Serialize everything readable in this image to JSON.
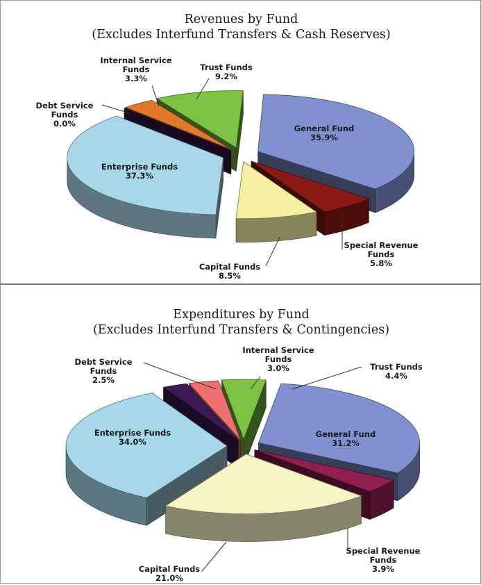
{
  "chart_data": [
    {
      "type": "pie",
      "title": "Revenues by Fund",
      "subtitle": "(Excludes Interfund Transfers & Cash Reserves)",
      "slices": [
        {
          "label": "General Fund",
          "value": 35.9,
          "value_label": "35.9%",
          "color": "#8091cf"
        },
        {
          "label": "Special Revenue Funds",
          "value": 5.8,
          "value_label": "5.8%",
          "color": "#8b1a14"
        },
        {
          "label": "Capital Funds",
          "value": 8.5,
          "value_label": "8.5%",
          "color": "#f4f0a0"
        },
        {
          "label": "Enterprise Funds",
          "value": 37.3,
          "value_label": "37.3%",
          "color": "#a8d8e8"
        },
        {
          "label": "Debt Service Funds",
          "value": 0.0,
          "value_label": "0.0%",
          "color": "#3a1a4a"
        },
        {
          "label": "Internal Service Funds",
          "value": 3.3,
          "value_label": "3.3%",
          "color": "#e07a2a"
        },
        {
          "label": "Trust Funds",
          "value": 9.2,
          "value_label": "9.2%",
          "color": "#7dc242"
        }
      ]
    },
    {
      "type": "pie",
      "title": "Expenditures by Fund",
      "subtitle": "(Excludes Interfund Transfers & Contingencies)",
      "slices": [
        {
          "label": "General Fund",
          "value": 31.2,
          "value_label": "31.2%",
          "color": "#8091cf"
        },
        {
          "label": "Special Revenue Funds",
          "value": 3.9,
          "value_label": "3.9%",
          "color": "#8e1f4f"
        },
        {
          "label": "Capital Funds",
          "value": 21.0,
          "value_label": "21.0%",
          "color": "#f6f4c4"
        },
        {
          "label": "Enterprise Funds",
          "value": 34.0,
          "value_label": "34.0%",
          "color": "#a6d8ea"
        },
        {
          "label": "Debt Service Funds",
          "value": 2.5,
          "value_label": "2.5%",
          "color": "#3d1a55"
        },
        {
          "label": "Internal Service Funds",
          "value": 3.0,
          "value_label": "3.0%",
          "color": "#f07070"
        },
        {
          "label": "Trust Funds",
          "value": 4.4,
          "value_label": "4.4%",
          "color": "#7dc242"
        }
      ]
    }
  ]
}
